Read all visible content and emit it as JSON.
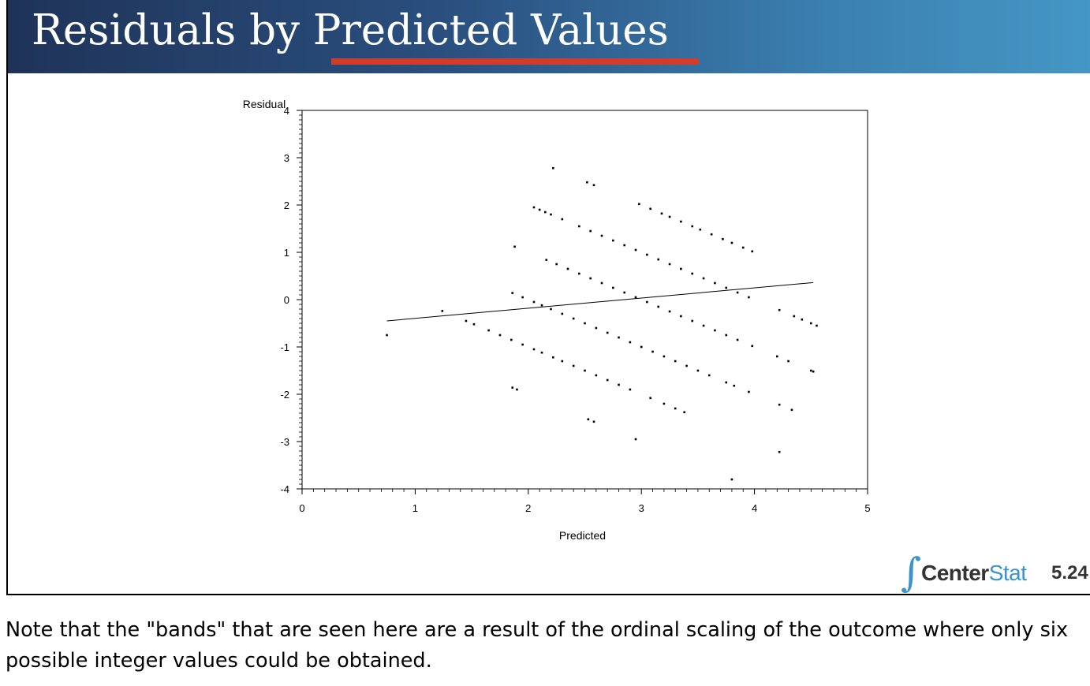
{
  "slide": {
    "title": "Residuals by Predicted Values",
    "logo": {
      "prefix": "Center",
      "suffix": "Stat"
    },
    "page_number": "5.24",
    "note": "Note that the \"bands\" that are seen here are a result of the ordinal scaling of the outcome where only six possible integer values could be obtained."
  },
  "colors": {
    "header_start": "#1f3358",
    "header_end": "#4597c5",
    "title_underline": "#d23c2a",
    "logo_accent": "#3a93c9"
  },
  "chart_data": {
    "type": "scatter",
    "xlabel": "Predicted",
    "ylabel": "Residual",
    "xlim": [
      0,
      5
    ],
    "ylim": [
      -4,
      4
    ],
    "xticks": [
      0,
      1,
      2,
      3,
      4,
      5
    ],
    "yticks": [
      -4,
      -3,
      -2,
      -1,
      0,
      1,
      2,
      3,
      4
    ],
    "grid": false,
    "bands": [
      {
        "outcome": 0,
        "x": [
          0.75,
          1.86,
          1.9,
          2.53,
          2.58,
          2.95,
          3.8
        ]
      },
      {
        "outcome": 1,
        "x": [
          1.24,
          1.45,
          1.52,
          1.65,
          1.75,
          1.85,
          1.95,
          2.05,
          2.12,
          2.22,
          2.3,
          2.4,
          2.5,
          2.6,
          2.7,
          2.8,
          2.9,
          3.08,
          3.2,
          3.3,
          3.38,
          4.22
        ]
      },
      {
        "outcome": 2,
        "x": [
          1.86,
          1.95,
          2.05,
          2.12,
          2.2,
          2.3,
          2.4,
          2.5,
          2.6,
          2.7,
          2.8,
          2.9,
          3.0,
          3.1,
          3.2,
          3.3,
          3.4,
          3.5,
          3.6,
          3.75,
          3.82,
          3.95,
          4.22,
          4.33
        ]
      },
      {
        "outcome": 3,
        "x": [
          1.88,
          2.16,
          2.25,
          2.35,
          2.45,
          2.55,
          2.65,
          2.75,
          2.85,
          2.95,
          3.05,
          3.15,
          3.25,
          3.35,
          3.45,
          3.55,
          3.65,
          3.75,
          3.85,
          3.98,
          4.2,
          4.3,
          4.5,
          4.52
        ]
      },
      {
        "outcome": 4,
        "x": [
          2.05,
          2.1,
          2.15,
          2.2,
          2.3,
          2.45,
          2.55,
          2.65,
          2.75,
          2.85,
          2.95,
          3.05,
          3.15,
          3.25,
          3.35,
          3.45,
          3.55,
          3.65,
          3.75,
          3.85,
          3.95,
          4.22,
          4.35,
          4.42,
          4.5,
          4.55
        ]
      },
      {
        "outcome": 5,
        "x": [
          2.22,
          2.52,
          2.58,
          2.98,
          3.08,
          3.18,
          3.25,
          3.35,
          3.45,
          3.52,
          3.62,
          3.72,
          3.8,
          3.9,
          3.98
        ]
      }
    ],
    "fit_line": {
      "x": [
        0.75,
        4.52
      ],
      "y": [
        -0.45,
        0.36
      ]
    }
  }
}
